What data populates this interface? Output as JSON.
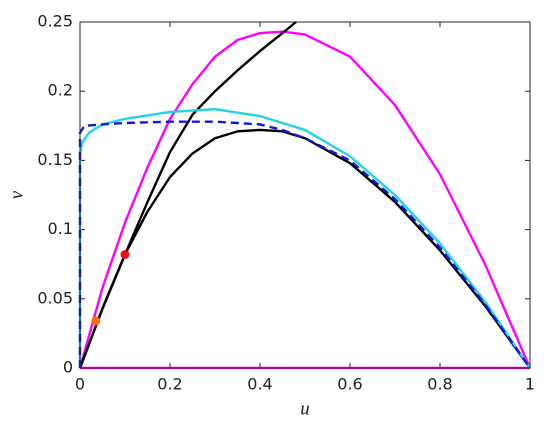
{
  "chart_data": {
    "type": "line",
    "xlabel": "u",
    "ylabel": "v",
    "xlim": [
      0,
      1
    ],
    "ylim": [
      0,
      0.25
    ],
    "xticks": [
      0,
      0.2,
      0.4,
      0.6,
      0.8,
      1
    ],
    "yticks": [
      0,
      0.05,
      0.1,
      0.15,
      0.2,
      0.25
    ],
    "series": [
      {
        "color": "#ff00ff",
        "x": [
          0,
          1
        ],
        "values": [
          0,
          0
        ]
      },
      {
        "color": "#ff00ff",
        "x": [
          0,
          0.05,
          0.1,
          0.15,
          0.2,
          0.25,
          0.3,
          0.35,
          0.4,
          0.45,
          0.5,
          0.6,
          0.7,
          0.8,
          0.9,
          1
        ],
        "values": [
          0,
          0.058,
          0.105,
          0.145,
          0.18,
          0.205,
          0.225,
          0.237,
          0.242,
          0.243,
          0.241,
          0.225,
          0.19,
          0.14,
          0.075,
          0
        ]
      },
      {
        "color": "#000000",
        "x": [
          0,
          0.05,
          0.1,
          0.15,
          0.2,
          0.25,
          0.3,
          0.35,
          0.4,
          0.45,
          0.48
        ],
        "values": [
          0,
          0.043,
          0.082,
          0.12,
          0.156,
          0.183,
          0.2,
          0.215,
          0.229,
          0.242,
          0.25
        ]
      },
      {
        "color": "#000000",
        "x": [
          0,
          0.05,
          0.1,
          0.15,
          0.2,
          0.25,
          0.3,
          0.35,
          0.4,
          0.45,
          0.5,
          0.6,
          0.7,
          0.8,
          0.9,
          1
        ],
        "values": [
          0,
          0.043,
          0.082,
          0.113,
          0.138,
          0.155,
          0.166,
          0.171,
          0.172,
          0.171,
          0.166,
          0.148,
          0.12,
          0.085,
          0.045,
          0
        ]
      },
      {
        "color": "#22d3e0",
        "x": [
          0,
          0,
          0.005,
          0.02,
          0.05,
          0.1,
          0.2,
          0.3,
          0.4,
          0.5,
          0.6,
          0.7,
          0.8,
          0.9,
          1
        ],
        "values": [
          0,
          0.155,
          0.163,
          0.17,
          0.176,
          0.18,
          0.185,
          0.187,
          0.182,
          0.172,
          0.153,
          0.125,
          0.09,
          0.048,
          0
        ]
      },
      {
        "color": "#1515e0",
        "style": "dashed",
        "x": [
          0,
          0,
          0.01,
          0.05,
          0.1,
          0.2,
          0.3,
          0.4,
          0.45,
          0.5,
          0.6,
          0.7,
          0.8,
          0.9,
          1
        ],
        "values": [
          0,
          0.17,
          0.175,
          0.176,
          0.177,
          0.178,
          0.178,
          0.176,
          0.172,
          0.166,
          0.15,
          0.122,
          0.087,
          0.046,
          0
        ]
      },
      {
        "color": "#ee1111",
        "marker": "circle",
        "x": [
          0.1
        ],
        "values": [
          0.082
        ]
      },
      {
        "color": "#ff6a13",
        "marker": "circle",
        "x": [
          0.035
        ],
        "values": [
          0.034
        ]
      }
    ]
  }
}
